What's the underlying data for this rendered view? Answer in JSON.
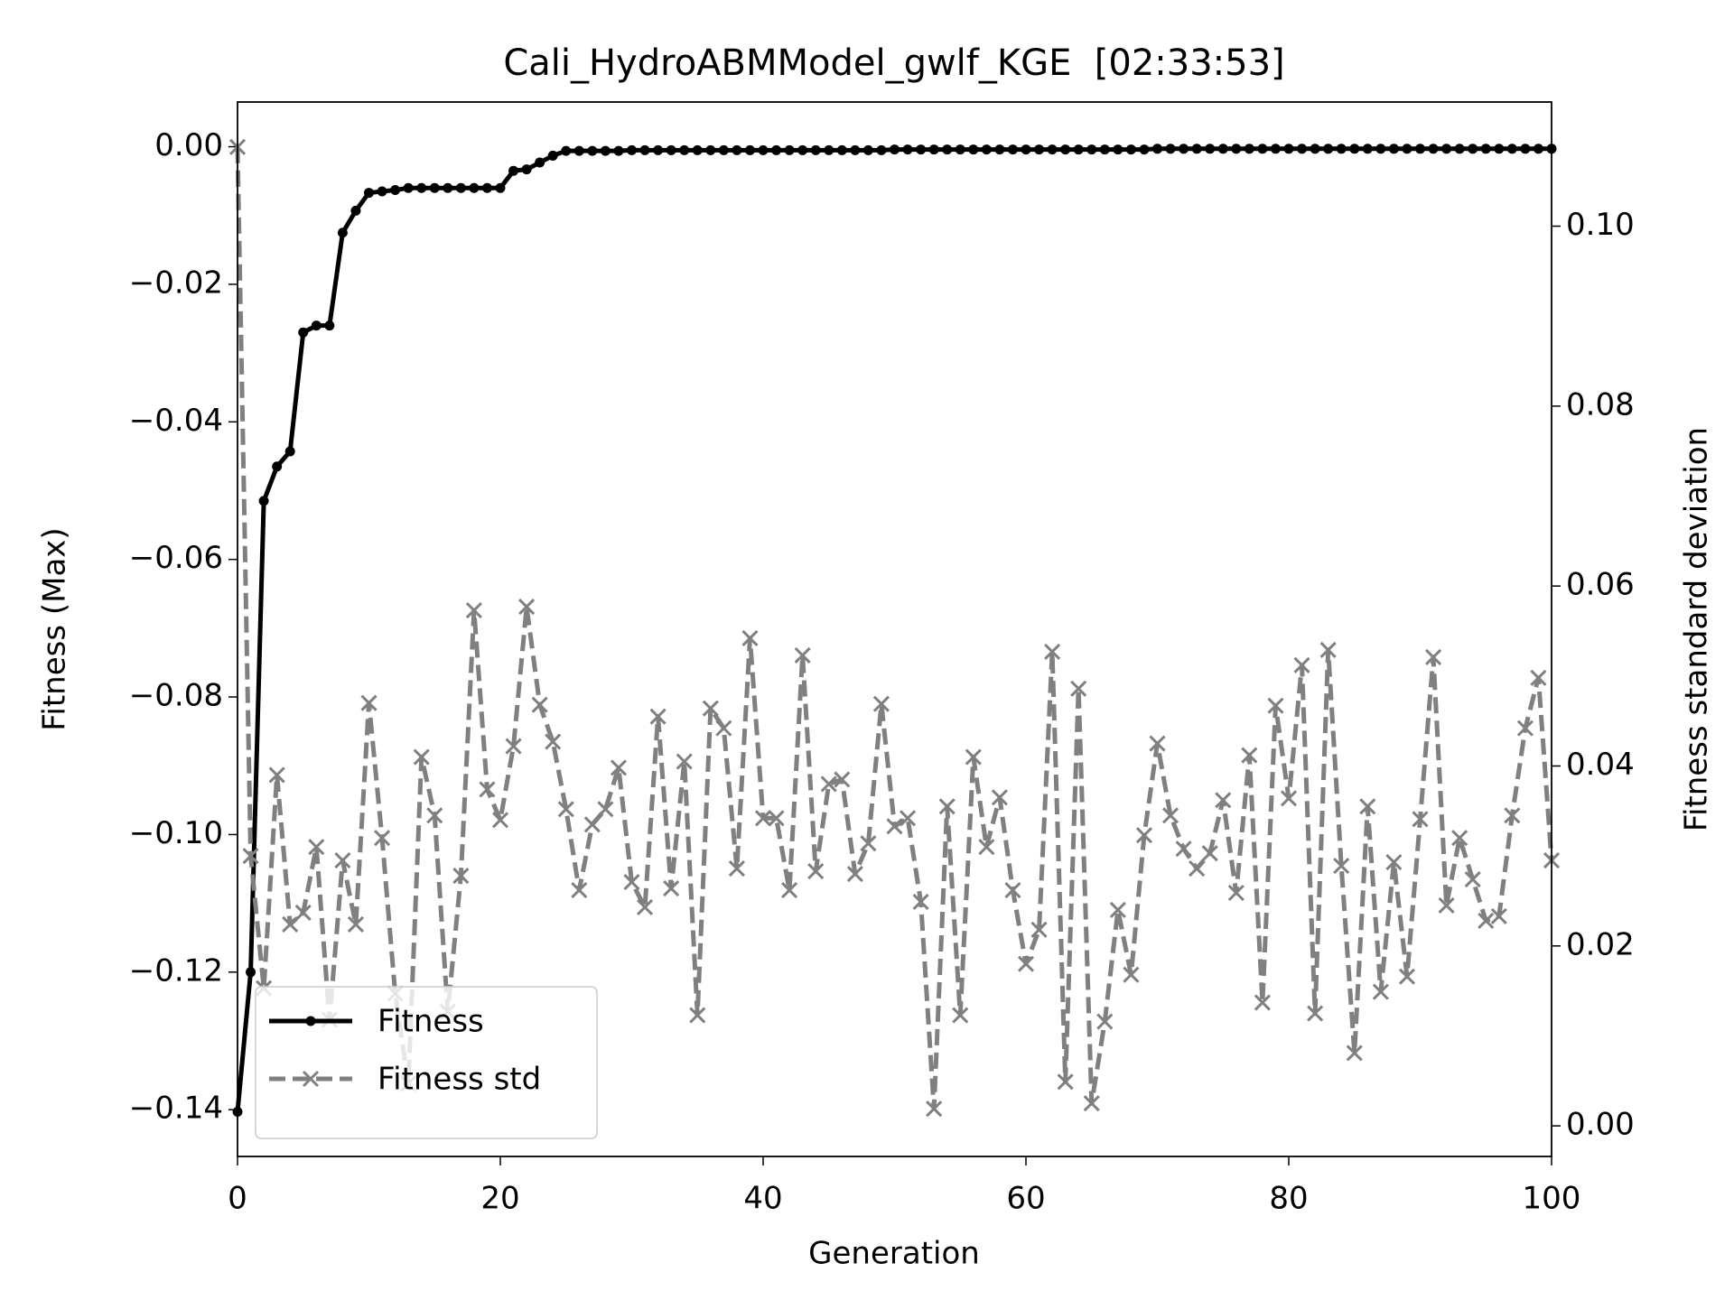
{
  "chart_data": {
    "type": "line",
    "title": "Cali_HydroABMModel_gwlf_KGE  [02:33:53]",
    "xlabel": "Generation",
    "ylabel": "Fitness (Max)",
    "y2label": "Fitness standard deviation",
    "x": [
      0,
      1,
      2,
      3,
      4,
      5,
      6,
      7,
      8,
      9,
      10,
      11,
      12,
      13,
      14,
      15,
      16,
      17,
      18,
      19,
      20,
      21,
      22,
      23,
      24,
      25,
      26,
      27,
      28,
      29,
      30,
      31,
      32,
      33,
      34,
      35,
      36,
      37,
      38,
      39,
      40,
      41,
      42,
      43,
      44,
      45,
      46,
      47,
      48,
      49,
      50,
      51,
      52,
      53,
      54,
      55,
      56,
      57,
      58,
      59,
      60,
      61,
      62,
      63,
      64,
      65,
      66,
      67,
      68,
      69,
      70,
      71,
      72,
      73,
      74,
      75,
      76,
      77,
      78,
      79,
      80,
      81,
      82,
      83,
      84,
      85,
      86,
      87,
      88,
      89,
      90,
      91,
      92,
      93,
      94,
      95,
      96,
      97,
      98,
      99,
      100
    ],
    "series": [
      {
        "name": "Fitness",
        "color": "#000000",
        "axis": "y",
        "marker": "dot",
        "dash": false,
        "values": [
          -0.1403,
          -0.12,
          -0.0515,
          -0.0465,
          -0.0443,
          -0.027,
          -0.026,
          -0.026,
          -0.0125,
          -0.0093,
          -0.0067,
          -0.0065,
          -0.0063,
          -0.006,
          -0.006,
          -0.006,
          -0.006,
          -0.006,
          -0.006,
          -0.006,
          -0.006,
          -0.0035,
          -0.0033,
          -0.0023,
          -0.0013,
          -0.0006,
          -0.0006,
          -0.0006,
          -0.0006,
          -0.0006,
          -0.0005,
          -0.0005,
          -0.0005,
          -0.0005,
          -0.0005,
          -0.0005,
          -0.0005,
          -0.0005,
          -0.0005,
          -0.0005,
          -0.0005,
          -0.0005,
          -0.0005,
          -0.0005,
          -0.0005,
          -0.0005,
          -0.0005,
          -0.0005,
          -0.0005,
          -0.0005,
          -0.0004,
          -0.0004,
          -0.0004,
          -0.0004,
          -0.0004,
          -0.0004,
          -0.0004,
          -0.0004,
          -0.0004,
          -0.0004,
          -0.0004,
          -0.0004,
          -0.0004,
          -0.0004,
          -0.0004,
          -0.0004,
          -0.0004,
          -0.0004,
          -0.0004,
          -0.0004,
          -0.0003,
          -0.0003,
          -0.0003,
          -0.0003,
          -0.0003,
          -0.0003,
          -0.0003,
          -0.0003,
          -0.0003,
          -0.0003,
          -0.0003,
          -0.0003,
          -0.0003,
          -0.0003,
          -0.0003,
          -0.0003,
          -0.0003,
          -0.0003,
          -0.0003,
          -0.0003,
          -0.0003,
          -0.0003,
          -0.0003,
          -0.0003,
          -0.0003,
          -0.0003,
          -0.0003,
          -0.0003,
          -0.0003,
          -0.0003,
          -0.0003
        ]
      },
      {
        "name": "Fitness std",
        "color": "#808080",
        "axis": "y2",
        "marker": "x",
        "dash": true,
        "values": [
          0.1088,
          0.03,
          0.0153,
          0.039,
          0.0224,
          0.0237,
          0.031,
          0.0118,
          0.0295,
          0.0224,
          0.047,
          0.032,
          0.0147,
          0.0047,
          0.041,
          0.0345,
          0.0127,
          0.0278,
          0.0573,
          0.0374,
          0.034,
          0.0422,
          0.0577,
          0.0468,
          0.0427,
          0.0352,
          0.0262,
          0.0335,
          0.0352,
          0.0398,
          0.0271,
          0.0243,
          0.0455,
          0.0264,
          0.0405,
          0.0123,
          0.0464,
          0.0442,
          0.0286,
          0.0542,
          0.0342,
          0.0342,
          0.0262,
          0.0523,
          0.0283,
          0.038,
          0.0385,
          0.028,
          0.0314,
          0.0469,
          0.0333,
          0.0342,
          0.0249,
          0.0019,
          0.0355,
          0.0123,
          0.041,
          0.031,
          0.0365,
          0.0262,
          0.018,
          0.0218,
          0.0527,
          0.0049,
          0.0486,
          0.0025,
          0.0116,
          0.024,
          0.0168,
          0.0323,
          0.0425,
          0.0345,
          0.0308,
          0.0286,
          0.0303,
          0.0362,
          0.0259,
          0.0412,
          0.0137,
          0.0467,
          0.0364,
          0.0512,
          0.0125,
          0.0529,
          0.0289,
          0.0081,
          0.0355,
          0.0149,
          0.0293,
          0.0166,
          0.0341,
          0.0521,
          0.0245,
          0.032,
          0.0274,
          0.0228,
          0.0233,
          0.0345,
          0.0442,
          0.0498,
          0.0295
        ]
      }
    ],
    "xlim": [
      0,
      100
    ],
    "xticks": [
      0,
      20,
      40,
      60,
      80,
      100
    ],
    "ylim": [
      -0.1468,
      0.0065
    ],
    "yticks": [
      {
        "value": -0.14,
        "label": "−0.14"
      },
      {
        "value": -0.12,
        "label": "−0.12"
      },
      {
        "value": -0.1,
        "label": "−0.10"
      },
      {
        "value": -0.08,
        "label": "−0.08"
      },
      {
        "value": -0.06,
        "label": "−0.06"
      },
      {
        "value": -0.04,
        "label": "−0.04"
      },
      {
        "value": -0.02,
        "label": "−0.02"
      },
      {
        "value": 0,
        "label": "0.00"
      }
    ],
    "y2lim": [
      -0.0034,
      0.1138
    ],
    "y2ticks": [
      {
        "value": 0,
        "label": "0.00"
      },
      {
        "value": 0.02,
        "label": "0.02"
      },
      {
        "value": 0.04,
        "label": "0.04"
      },
      {
        "value": 0.06,
        "label": "0.06"
      },
      {
        "value": 0.08,
        "label": "0.08"
      },
      {
        "value": 0.1,
        "label": "0.10"
      }
    ],
    "grid": false,
    "legend": "lower left"
  }
}
